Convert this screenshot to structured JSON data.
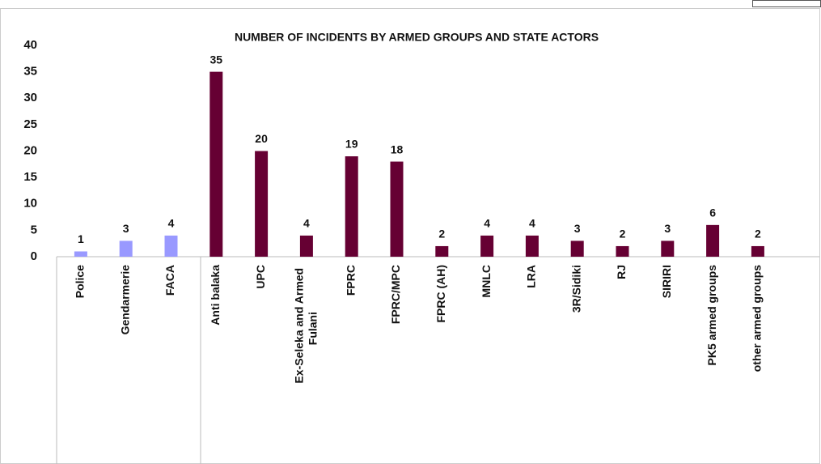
{
  "chart_data": {
    "type": "bar",
    "title": "NUMBER OF INCIDENTS BY ARMED GROUPS AND STATE ACTORS",
    "categories": [
      "Police",
      "Gendarmerie",
      "FACA",
      "Anti balaka",
      "UPC",
      "Ex-Seleka and Armed Fulani",
      "FPRC",
      "FPRC/MPC",
      "FPRC (AH)",
      "MNLC",
      "LRA",
      "3R/Sidiki",
      "RJ",
      "SIRIRI",
      "PK5 armed groups",
      "other armed groups"
    ],
    "values": [
      1,
      3,
      4,
      35,
      20,
      4,
      19,
      18,
      2,
      4,
      4,
      3,
      2,
      3,
      6,
      2
    ],
    "colors": [
      "#9999ff",
      "#9999ff",
      "#9999ff",
      "#660033",
      "#660033",
      "#660033",
      "#660033",
      "#660033",
      "#660033",
      "#660033",
      "#660033",
      "#660033",
      "#660033",
      "#660033",
      "#660033",
      "#660033"
    ],
    "ylim": [
      0,
      40
    ],
    "yticks": [
      0,
      5,
      10,
      15,
      20,
      25,
      30,
      35,
      40
    ],
    "grid": false
  }
}
